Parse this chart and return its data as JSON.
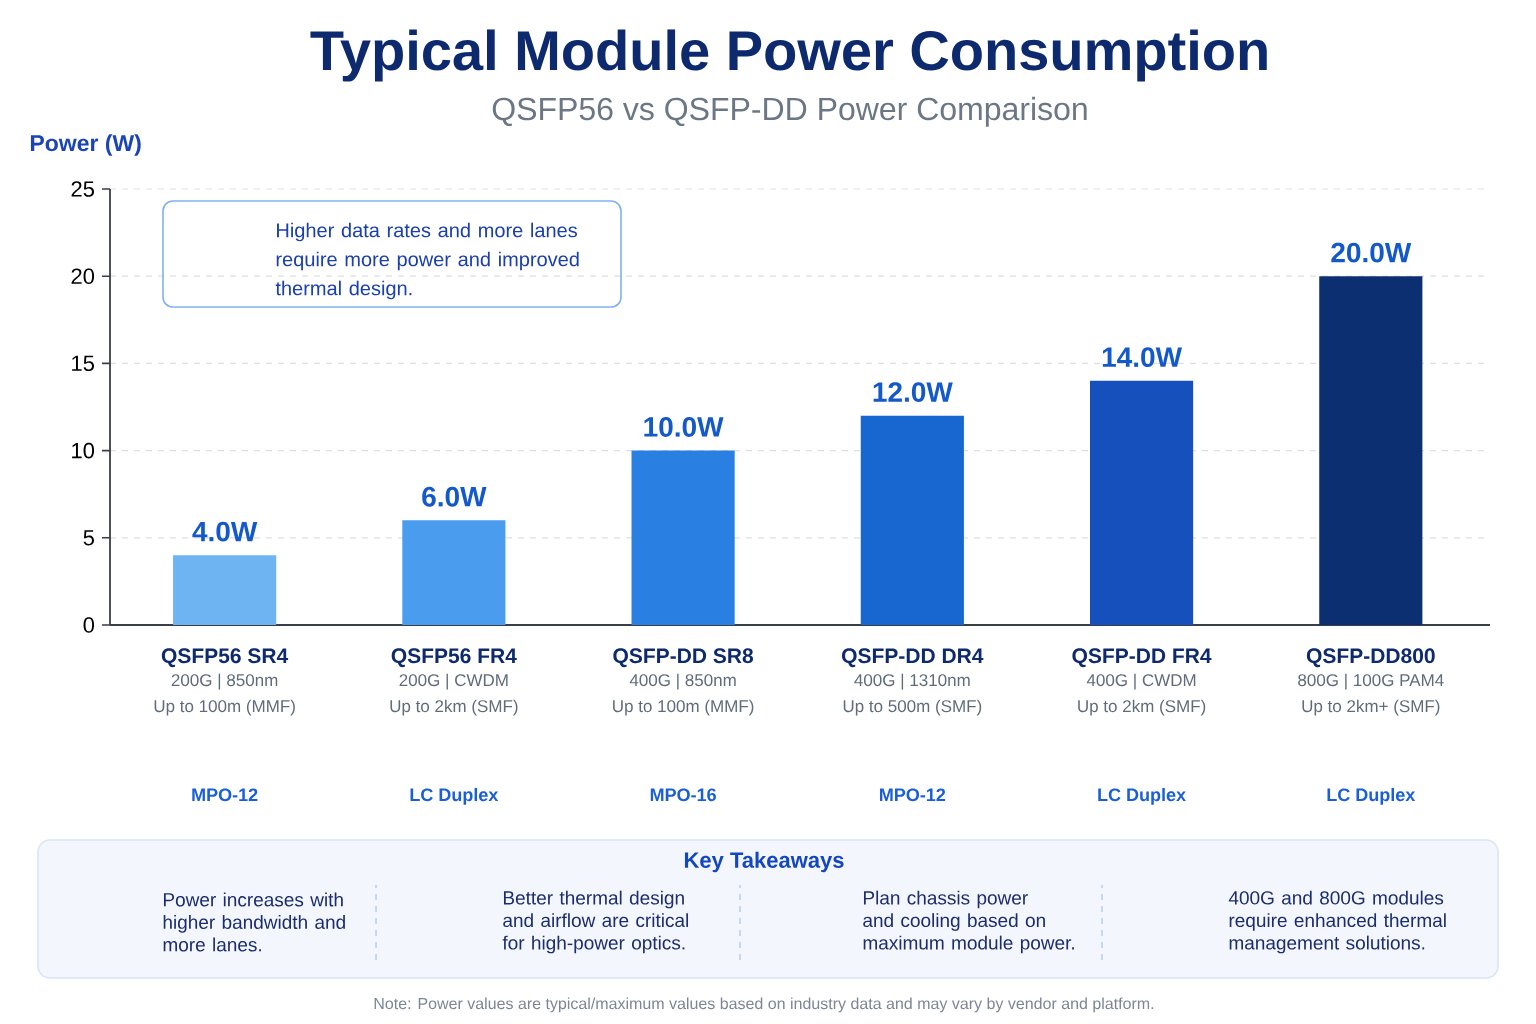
{
  "chart_data": {
    "type": "bar",
    "title": "Typical Module Power Consumption",
    "subtitle": "QSFP56 vs QSFP-DD Power Comparison",
    "ylabel": "Power (W)",
    "categories": [
      "QSFP56 SR4",
      "QSFP56 FR4",
      "QSFP-DD SR8",
      "QSFP-DD DR4",
      "QSFP-DD FR4",
      "QSFP-DD800"
    ],
    "values": [
      4,
      6,
      10,
      12,
      14,
      20
    ],
    "value_labels": [
      "4.0W",
      "6.0W",
      "10.0W",
      "12.0W",
      "14.0W",
      "20.0W"
    ],
    "colors": [
      "#6fb4f2",
      "#4a9dee",
      "#2a80e2",
      "#1866d0",
      "#1550bd",
      "#0c2f72"
    ],
    "ylim": [
      0,
      25
    ],
    "yticks": [
      0,
      5,
      10,
      15,
      20,
      25
    ],
    "grid": "y",
    "annotations": [
      "Higher data rates and more lanes require more power and improved thermal design.",
      "200G | 850nm",
      "Up to 100m (MMF)",
      "MPO-12",
      "200G | CWDM",
      "Up to 2km (SMF)",
      "LC Duplex",
      "400G | 850nm",
      "Up to 100m (MMF)",
      "MPO-16",
      "400G | 1310nm",
      "Up to 500m (SMF)",
      "MPO-12",
      "400G | CWDM",
      "Up to 2km (SMF)",
      "LC Duplex",
      "800G | 100G PAM4",
      "Up to 2km+ (SMF)",
      "LC Duplex",
      "Key Takeaways",
      "Power increases with higher bandwidth and more lanes.",
      "Better thermal design and airflow are critical for high-power optics.",
      "Plan chassis power and cooling based on maximum module power.",
      "400G and 800G modules require enhanced thermal management solutions.",
      "Note: Power values are typical/maximum values based on industry data and may vary by vendor and platform."
    ]
  }
}
